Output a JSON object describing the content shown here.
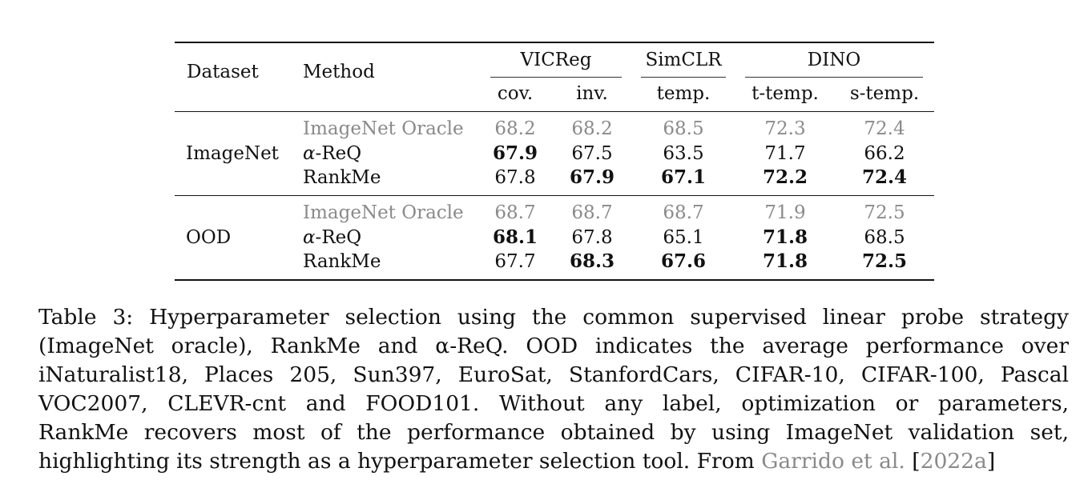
{
  "table": {
    "headers": {
      "dataset": "Dataset",
      "method": "Method",
      "groups": [
        "VICReg",
        "SimCLR",
        "DINO"
      ],
      "subcols": [
        "cov.",
        "inv.",
        "temp.",
        "t-temp.",
        "s-temp."
      ]
    },
    "sections": [
      {
        "dataset": "ImageNet",
        "rows": [
          {
            "method_prefix": "",
            "method": "ImageNet Oracle",
            "values": [
              "68.2",
              "68.2",
              "68.5",
              "72.3",
              "72.4"
            ],
            "bold": [
              false,
              false,
              false,
              false,
              false
            ],
            "oracle": true
          },
          {
            "method_prefix": "α",
            "method": "-ReQ",
            "values": [
              "67.9",
              "67.5",
              "63.5",
              "71.7",
              "66.2"
            ],
            "bold": [
              true,
              false,
              false,
              false,
              false
            ],
            "oracle": false
          },
          {
            "method_prefix": "",
            "method": "RankMe",
            "values": [
              "67.8",
              "67.9",
              "67.1",
              "72.2",
              "72.4"
            ],
            "bold": [
              false,
              true,
              true,
              true,
              true
            ],
            "oracle": false
          }
        ]
      },
      {
        "dataset": "OOD",
        "rows": [
          {
            "method_prefix": "",
            "method": "ImageNet Oracle",
            "values": [
              "68.7",
              "68.7",
              "68.7",
              "71.9",
              "72.5"
            ],
            "bold": [
              false,
              false,
              false,
              false,
              false
            ],
            "oracle": true
          },
          {
            "method_prefix": "α",
            "method": "-ReQ",
            "values": [
              "68.1",
              "67.8",
              "65.1",
              "71.8",
              "68.5"
            ],
            "bold": [
              true,
              false,
              false,
              true,
              false
            ],
            "oracle": false
          },
          {
            "method_prefix": "",
            "method": "RankMe",
            "values": [
              "67.7",
              "68.3",
              "67.6",
              "71.8",
              "72.5"
            ],
            "bold": [
              false,
              true,
              true,
              true,
              true
            ],
            "oracle": false
          }
        ]
      }
    ]
  },
  "caption": {
    "lines": [
      "Table 3: Hyperparameter selection using the common supervised linear probe strategy",
      "(ImageNet oracle), RankMe and α-ReQ. OOD indicates the average performance over",
      "iNaturalist18, Places 205, Sun397, EuroSat, StanfordCars, CIFAR-10, CIFAR-100, Pascal",
      "VOC2007, CLEVR-cnt and FOOD101. Without any label, optimization or parameters,",
      "RankMe recovers most of the performance obtained by using ImageNet validation set,",
      "highlighting its strength as a hyperparameter selection tool. From "
    ],
    "cite_author": "Garrido et al.",
    "cite_open": "[",
    "cite_year": "2022a",
    "cite_close": "]"
  }
}
